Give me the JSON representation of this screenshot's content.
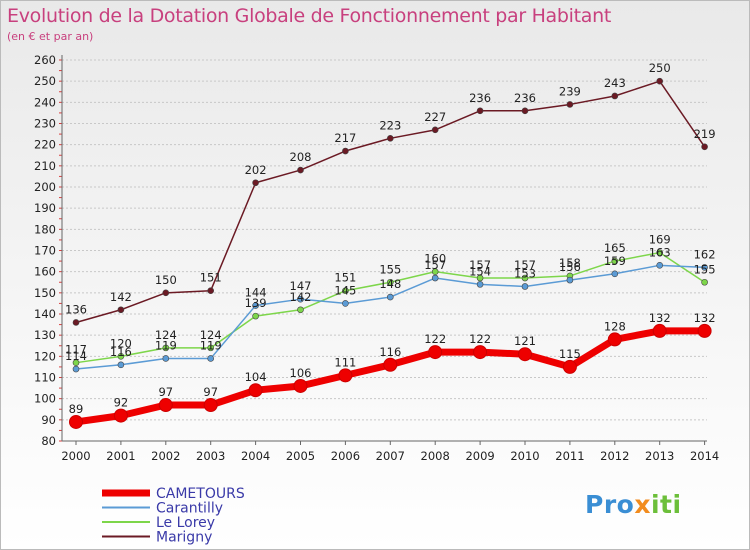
{
  "header": {
    "title": "Evolution de la Dotation Globale de Fonctionnement par Habitant",
    "subtitle": "(en € et par an)"
  },
  "logo": {
    "part1": "Pro",
    "part2": "x",
    "part3": "iti"
  },
  "chart_data": {
    "type": "line",
    "title": "Evolution de la Dotation Globale de Fonctionnement par Habitant",
    "subtitle": "(en € et par an)",
    "x": [
      "2000",
      "2001",
      "2002",
      "2003",
      "2004",
      "2005",
      "2006",
      "2007",
      "2008",
      "2009",
      "2010",
      "2011",
      "2012",
      "2013",
      "2014"
    ],
    "ylim": [
      80,
      260
    ],
    "yticks": [
      80,
      90,
      100,
      110,
      120,
      130,
      140,
      150,
      160,
      170,
      180,
      190,
      200,
      210,
      220,
      230,
      240,
      250,
      260
    ],
    "grid": "horizontal-dashed",
    "legend_position": "bottom-left",
    "series": [
      {
        "name": "CAMETOURS",
        "color": "#ee0000",
        "values": [
          89,
          92,
          97,
          97,
          104,
          106,
          111,
          116,
          122,
          122,
          121,
          115,
          128,
          132,
          132
        ]
      },
      {
        "name": "Carantilly",
        "color": "#5b9bd5",
        "values": [
          114,
          116,
          119,
          119,
          144,
          147,
          145,
          148,
          157,
          154,
          153,
          156,
          159,
          163,
          162
        ]
      },
      {
        "name": "Le Lorey",
        "color": "#7dd64a",
        "values": [
          117,
          120,
          124,
          124,
          139,
          142,
          151,
          155,
          160,
          157,
          157,
          158,
          165,
          169,
          155
        ]
      },
      {
        "name": "Marigny",
        "color": "#6b1a24",
        "values": [
          136,
          142,
          150,
          151,
          202,
          208,
          217,
          223,
          227,
          236,
          236,
          239,
          243,
          250,
          219
        ]
      }
    ],
    "data_labels": [
      {
        "series": "CAMETOURS",
        "labels": [
          "89",
          "92",
          "97",
          "97",
          "104",
          "106",
          "111",
          "116",
          "122",
          "122",
          "121",
          "115",
          "128",
          "132",
          "132"
        ]
      },
      {
        "series": "Carantilly",
        "labels": [
          "114",
          "116",
          "119",
          "119",
          "144",
          "147",
          "145",
          "148",
          "157",
          "154",
          "153",
          "156",
          "159",
          "163",
          "162"
        ]
      },
      {
        "series": "Le Lorey",
        "labels": [
          "117",
          "120",
          "124",
          "124",
          "139",
          "142",
          "151",
          "155",
          "160",
          "157",
          "157",
          "158",
          "165",
          "169",
          "155"
        ]
      },
      {
        "series": "Marigny",
        "labels": [
          "136",
          "142",
          "150",
          "151",
          "202",
          "208",
          "217",
          "223",
          "227",
          "236",
          "236",
          "239",
          "243",
          "250",
          "219"
        ]
      }
    ]
  }
}
